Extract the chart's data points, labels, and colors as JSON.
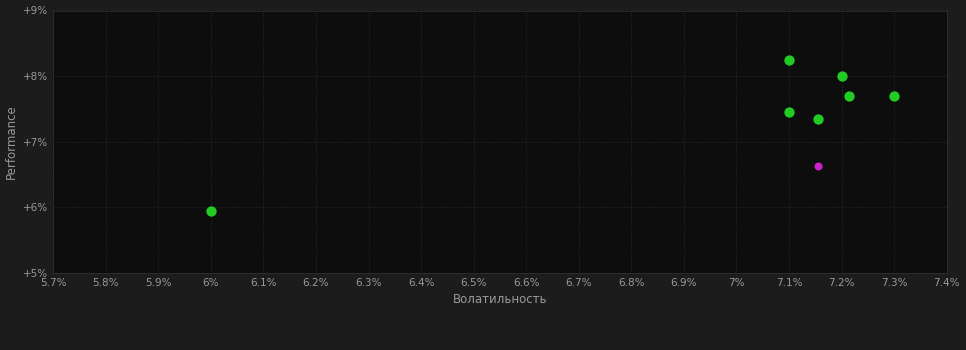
{
  "background_color": "#1c1c1c",
  "plot_bg_color": "#0d0d0d",
  "text_color": "#999999",
  "xlabel": "Волатильность",
  "ylabel": "Performance",
  "xlim": [
    0.057,
    0.074
  ],
  "ylim": [
    0.05,
    0.09
  ],
  "xticks": [
    0.057,
    0.058,
    0.059,
    0.06,
    0.061,
    0.062,
    0.063,
    0.064,
    0.065,
    0.066,
    0.067,
    0.068,
    0.069,
    0.07,
    0.071,
    0.072,
    0.073,
    0.074
  ],
  "yticks": [
    0.05,
    0.06,
    0.07,
    0.08,
    0.09
  ],
  "ytick_labels": [
    "+5%",
    "+6%",
    "+7%",
    "+8%",
    "+9%"
  ],
  "points_green": [
    [
      0.06,
      0.0595
    ],
    [
      0.071,
      0.0825
    ],
    [
      0.072,
      0.08
    ],
    [
      0.071,
      0.0745
    ],
    [
      0.07155,
      0.0735
    ],
    [
      0.07215,
      0.077
    ],
    [
      0.073,
      0.077
    ]
  ],
  "points_magenta": [
    [
      0.07155,
      0.0663
    ]
  ],
  "green_color": "#22cc22",
  "magenta_color": "#cc22cc",
  "marker_size": 55,
  "figsize": [
    9.66,
    3.5
  ],
  "dpi": 100
}
